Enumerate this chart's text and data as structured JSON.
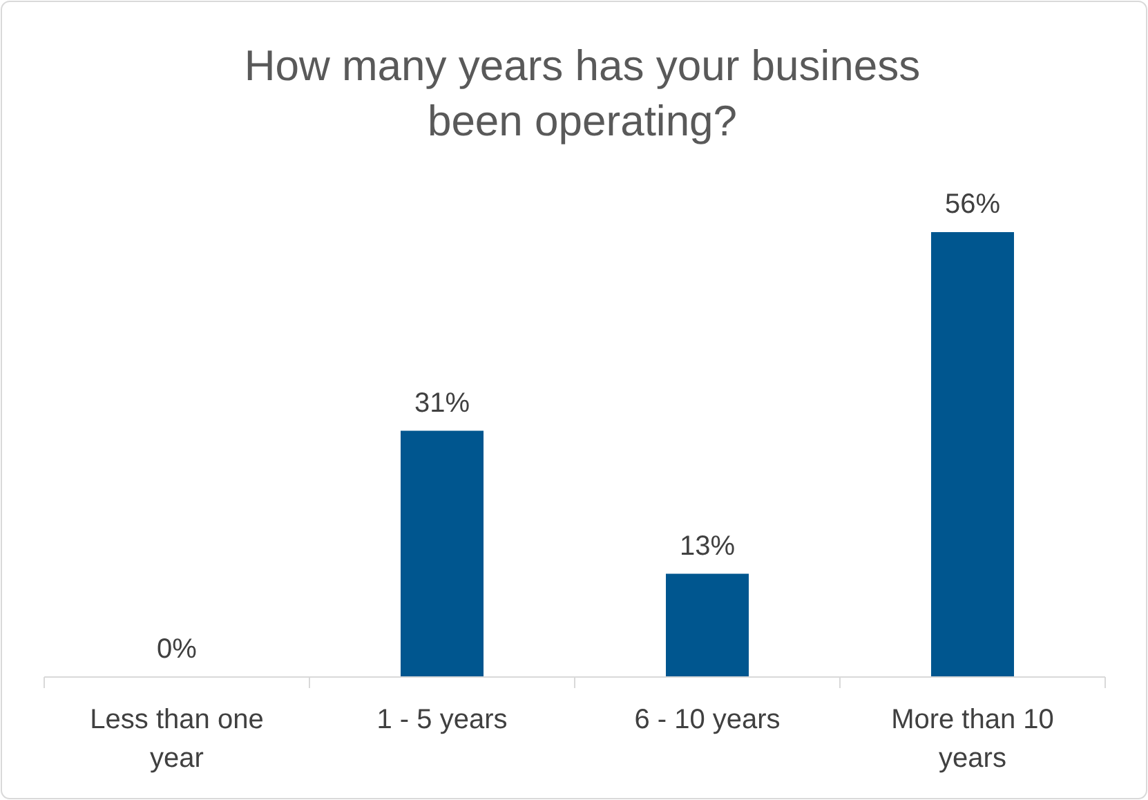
{
  "chart_data": {
    "type": "bar",
    "title": "How many years has your business been operating?",
    "categories": [
      "Less than one year",
      "1 - 5 years",
      "6 - 10 years",
      "More than 10 years"
    ],
    "values": [
      0,
      31,
      13,
      56
    ],
    "value_labels": [
      "0%",
      "31%",
      "13%",
      "56%"
    ],
    "color": "#00568f"
  }
}
